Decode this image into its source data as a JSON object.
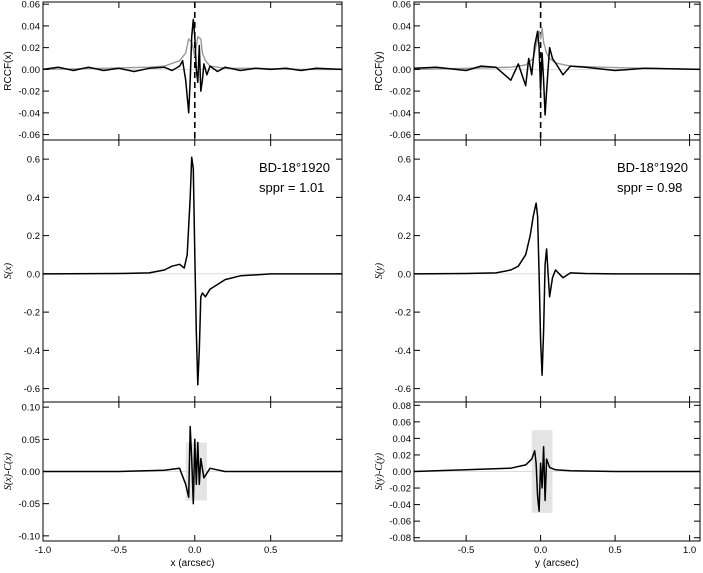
{
  "chart_data": [
    {
      "type": "line",
      "panel": "left-top",
      "ylabel": "RCCF(x)",
      "xlim": [
        -1.0,
        0.97
      ],
      "ylim": [
        -0.065,
        0.062
      ],
      "yticks": [
        0.06,
        0.04,
        0.02,
        0.0,
        -0.02,
        -0.04,
        -0.06
      ],
      "ytick_labels": [
        "0.06",
        "0.04",
        "0.02",
        "0.00",
        "-0.02",
        "-0.04",
        "-0.06"
      ],
      "vline_x": 0.0,
      "series": [
        {
          "color": "#000000",
          "x": [
            -1.0,
            -0.9,
            -0.8,
            -0.7,
            -0.6,
            -0.5,
            -0.4,
            -0.3,
            -0.2,
            -0.15,
            -0.1,
            -0.08,
            -0.06,
            -0.04,
            -0.03,
            -0.02,
            -0.01,
            0.0,
            0.01,
            0.02,
            0.03,
            0.04,
            0.05,
            0.06,
            0.08,
            0.1,
            0.15,
            0.2,
            0.3,
            0.4,
            0.5,
            0.6,
            0.7,
            0.8,
            0.97
          ],
          "y": [
            0.0,
            0.002,
            -0.001,
            0.002,
            -0.001,
            0.001,
            -0.002,
            0.001,
            0.002,
            -0.001,
            0.003,
            0.008,
            -0.01,
            -0.04,
            -0.01,
            0.03,
            0.046,
            0.03,
            0.0,
            -0.012,
            0.022,
            -0.02,
            -0.01,
            0.005,
            -0.005,
            0.003,
            -0.002,
            0.002,
            -0.001,
            0.001,
            0.0,
            0.001,
            -0.001,
            0.001,
            0.0
          ]
        },
        {
          "color": "#999999",
          "x": [
            -1.0,
            -0.6,
            -0.3,
            -0.2,
            -0.1,
            -0.06,
            -0.04,
            -0.02,
            0.0,
            0.02,
            0.04,
            0.05,
            0.07,
            0.1,
            0.2,
            0.4,
            0.7,
            0.97
          ],
          "y": [
            0.0,
            0.001,
            0.002,
            0.003,
            0.008,
            0.015,
            0.028,
            0.025,
            0.012,
            0.03,
            0.028,
            0.015,
            0.008,
            0.003,
            0.001,
            0.001,
            0.0,
            0.0
          ]
        }
      ]
    },
    {
      "type": "line",
      "panel": "left-middle",
      "ylabel": "S(x)",
      "xlim": [
        -1.0,
        0.97
      ],
      "ylim": [
        -0.67,
        0.7
      ],
      "yticks": [
        0.6,
        0.4,
        0.2,
        0.0,
        -0.2,
        -0.4,
        -0.6
      ],
      "ytick_labels": [
        "0.6",
        "0.4",
        "0.2",
        "0.0",
        "-0.2",
        "-0.4",
        "-0.6"
      ],
      "annotation": [
        "BD-18°1920",
        "sppr = 1.01"
      ],
      "series": [
        {
          "color": "#000000",
          "x": [
            -1.0,
            -0.5,
            -0.3,
            -0.2,
            -0.15,
            -0.1,
            -0.07,
            -0.05,
            -0.03,
            -0.02,
            -0.01,
            0.0,
            0.01,
            0.02,
            0.03,
            0.04,
            0.05,
            0.07,
            0.1,
            0.2,
            0.3,
            0.5,
            0.97
          ],
          "y": [
            0.0,
            0.002,
            0.005,
            0.02,
            0.04,
            0.05,
            0.03,
            0.1,
            0.4,
            0.61,
            0.55,
            0.1,
            -0.3,
            -0.58,
            -0.4,
            -0.12,
            -0.1,
            -0.12,
            -0.08,
            -0.03,
            -0.01,
            0.0,
            0.0
          ]
        }
      ]
    },
    {
      "type": "line",
      "panel": "left-bottom",
      "ylabel": "S(x)-C(x)",
      "xlabel": "x (arcsec)",
      "xlim": [
        -1.0,
        0.97
      ],
      "ylim": [
        -0.108,
        0.108
      ],
      "yticks": [
        0.1,
        0.05,
        0.0,
        -0.05,
        -0.1
      ],
      "ytick_labels": [
        "0.10",
        "0.05",
        "0.00",
        "-0.05",
        "-0.10"
      ],
      "xticks": [
        -1.0,
        -0.5,
        0.0,
        0.5
      ],
      "xtick_labels": [
        "-1.0",
        "-0.5",
        "0.0",
        "0.5"
      ],
      "series": [
        {
          "color": "#000000",
          "x": [
            -1.0,
            -0.5,
            -0.2,
            -0.1,
            -0.06,
            -0.04,
            -0.03,
            -0.02,
            -0.01,
            0.0,
            0.01,
            0.02,
            0.03,
            0.04,
            0.06,
            0.1,
            0.2,
            0.5,
            0.97
          ],
          "y": [
            0.0,
            0.0,
            0.002,
            0.005,
            -0.02,
            -0.04,
            0.07,
            0.02,
            -0.05,
            0.05,
            -0.02,
            0.045,
            -0.02,
            0.02,
            -0.01,
            0.005,
            0.0,
            0.0,
            0.0
          ]
        }
      ]
    },
    {
      "type": "line",
      "panel": "right-top",
      "ylabel": "RCCF(y)",
      "xlim": [
        -0.85,
        1.07
      ],
      "ylim": [
        -0.065,
        0.062
      ],
      "yticks": [
        0.06,
        0.04,
        0.02,
        0.0,
        -0.02,
        -0.04,
        -0.06
      ],
      "ytick_labels": [
        "0.06",
        "0.04",
        "0.02",
        "0.00",
        "-0.02",
        "-0.04",
        "-0.06"
      ],
      "vline_x": 0.0,
      "series": [
        {
          "color": "#000000",
          "x": [
            -0.85,
            -0.7,
            -0.5,
            -0.4,
            -0.3,
            -0.2,
            -0.15,
            -0.1,
            -0.08,
            -0.06,
            -0.04,
            -0.02,
            -0.01,
            0.0,
            0.01,
            0.02,
            0.03,
            0.04,
            0.06,
            0.08,
            0.1,
            0.15,
            0.2,
            0.3,
            0.5,
            0.7,
            1.07
          ],
          "y": [
            0.001,
            0.002,
            -0.001,
            0.003,
            0.002,
            -0.01,
            0.005,
            -0.015,
            0.01,
            -0.005,
            0.022,
            0.035,
            0.02,
            -0.02,
            0.015,
            -0.01,
            -0.042,
            -0.02,
            0.02,
            0.01,
            0.006,
            -0.005,
            0.003,
            0.002,
            -0.001,
            0.001,
            0.0
          ]
        },
        {
          "color": "#999999",
          "x": [
            -0.85,
            -0.5,
            -0.2,
            -0.1,
            -0.05,
            -0.03,
            -0.01,
            0.0,
            0.01,
            0.02,
            0.04,
            0.06,
            0.1,
            0.2,
            0.4,
            0.7,
            1.07
          ],
          "y": [
            0.0,
            0.001,
            0.002,
            0.004,
            0.01,
            0.022,
            0.035,
            0.028,
            0.038,
            0.025,
            0.015,
            0.01,
            0.006,
            0.003,
            0.002,
            0.001,
            0.0
          ]
        }
      ]
    },
    {
      "type": "line",
      "panel": "right-middle",
      "ylabel": "S(y)",
      "xlim": [
        -0.85,
        1.07
      ],
      "ylim": [
        -0.67,
        0.7
      ],
      "yticks": [
        0.6,
        0.4,
        0.2,
        0.0,
        -0.2,
        -0.4,
        -0.6
      ],
      "ytick_labels": [
        "0.6",
        "0.4",
        "0.2",
        "0.0",
        "-0.2",
        "-0.4",
        "-0.6"
      ],
      "annotation": [
        "BD-18°1920",
        "sppr = 0.98"
      ],
      "series": [
        {
          "color": "#000000",
          "x": [
            -0.85,
            -0.5,
            -0.3,
            -0.2,
            -0.15,
            -0.1,
            -0.07,
            -0.05,
            -0.03,
            -0.02,
            -0.01,
            0.0,
            0.01,
            0.02,
            0.03,
            0.04,
            0.05,
            0.06,
            0.08,
            0.1,
            0.15,
            0.2,
            0.3,
            0.5,
            1.07
          ],
          "y": [
            0.0,
            0.002,
            0.005,
            0.02,
            0.04,
            0.1,
            0.2,
            0.3,
            0.37,
            0.3,
            0.0,
            -0.35,
            -0.53,
            -0.3,
            0.05,
            0.13,
            0.0,
            -0.12,
            -0.02,
            0.02,
            -0.02,
            0.005,
            0.002,
            0.0,
            0.0
          ]
        }
      ]
    },
    {
      "type": "line",
      "panel": "right-bottom",
      "ylabel": "S(y)-C(y)",
      "xlabel": "y (arcsec)",
      "xlim": [
        -0.85,
        1.07
      ],
      "ylim": [
        -0.084,
        0.084
      ],
      "yticks": [
        0.08,
        0.06,
        0.04,
        0.02,
        0.0,
        -0.02,
        -0.04,
        -0.06,
        -0.08
      ],
      "ytick_labels": [
        "0.08",
        "0.06",
        "0.04",
        "0.02",
        "0.00",
        "-0.02",
        "-0.04",
        "-0.06",
        "-0.08"
      ],
      "xticks": [
        -0.5,
        0.0,
        0.5,
        1.0
      ],
      "xtick_labels": [
        "-0.5",
        "0.0",
        "0.5",
        "1.0"
      ],
      "series": [
        {
          "color": "#000000",
          "x": [
            -0.85,
            -0.5,
            -0.2,
            -0.1,
            -0.06,
            -0.04,
            -0.03,
            -0.02,
            -0.01,
            0.0,
            0.01,
            0.02,
            0.03,
            0.04,
            0.06,
            0.1,
            0.2,
            0.5,
            1.07
          ],
          "y": [
            0.0,
            0.002,
            0.004,
            0.008,
            0.015,
            0.025,
            0.01,
            -0.03,
            -0.048,
            0.01,
            -0.02,
            0.03,
            -0.035,
            0.015,
            0.005,
            0.002,
            0.001,
            0.0,
            0.0
          ]
        }
      ]
    }
  ]
}
